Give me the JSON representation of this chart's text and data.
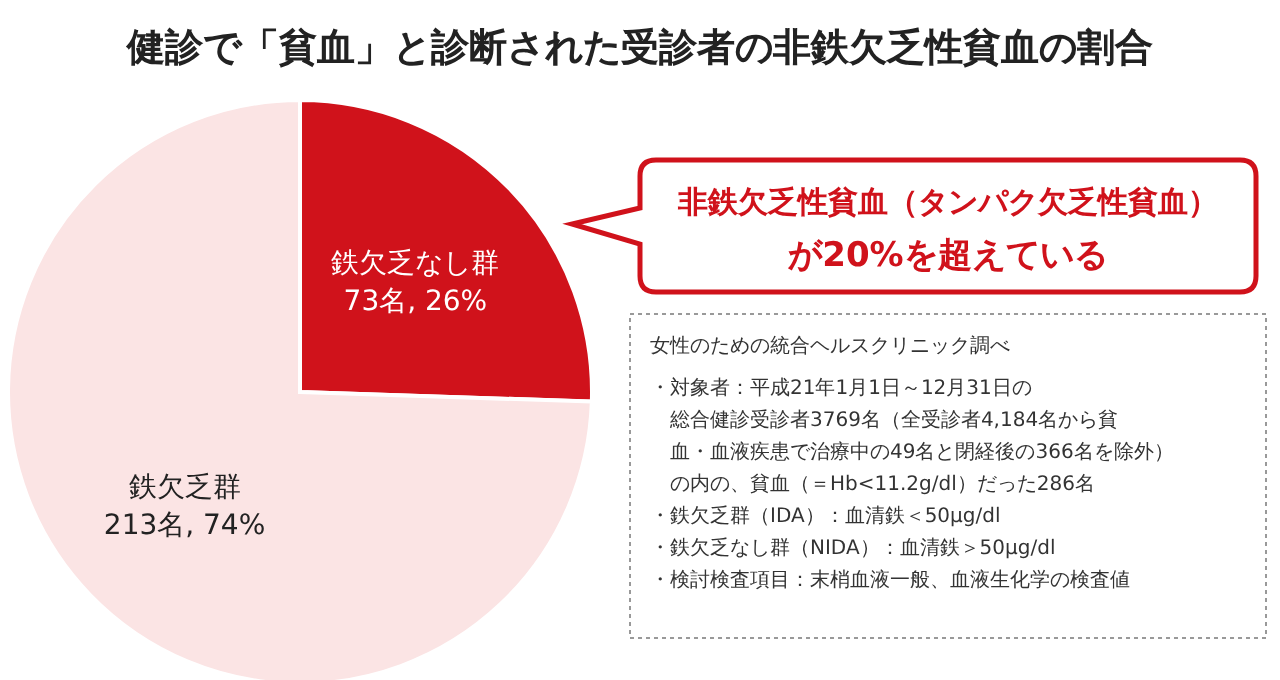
{
  "chart_data": {
    "type": "pie",
    "title": "健診で「貧血」と診断された受診者の非鉄欠乏性貧血の割合",
    "categories": [
      "鉄欠乏なし群",
      "鉄欠乏群"
    ],
    "values": [
      73,
      213
    ],
    "colors": [
      "#d0121b",
      "#fbe4e4"
    ],
    "value_labels": [
      "73名, 26%",
      "213名, 74%"
    ],
    "annotations": [
      "非鉄欠乏性貧血（タンパク欠乏性貧血）",
      "が20%を超えている",
      "女性のための統合ヘルスクリニック調べ",
      "・対象者：平成21年1月1日～12月31日の",
      "総合健診受診者3769名（全受診者4,184名から貧",
      "血・血液疾患で治療中の49名と閉経後の366名を除外）",
      "の内の、貧血（＝Hb<11.2g/dl）だった286名",
      "・鉄欠乏群（IDA）：血清鉄＜50μg/dl",
      "・鉄欠乏なし群（NIDA）：血清鉄＞50μg/dl",
      "・検討検査項目：末梢血液一般、血液生化学の検査値"
    ]
  }
}
